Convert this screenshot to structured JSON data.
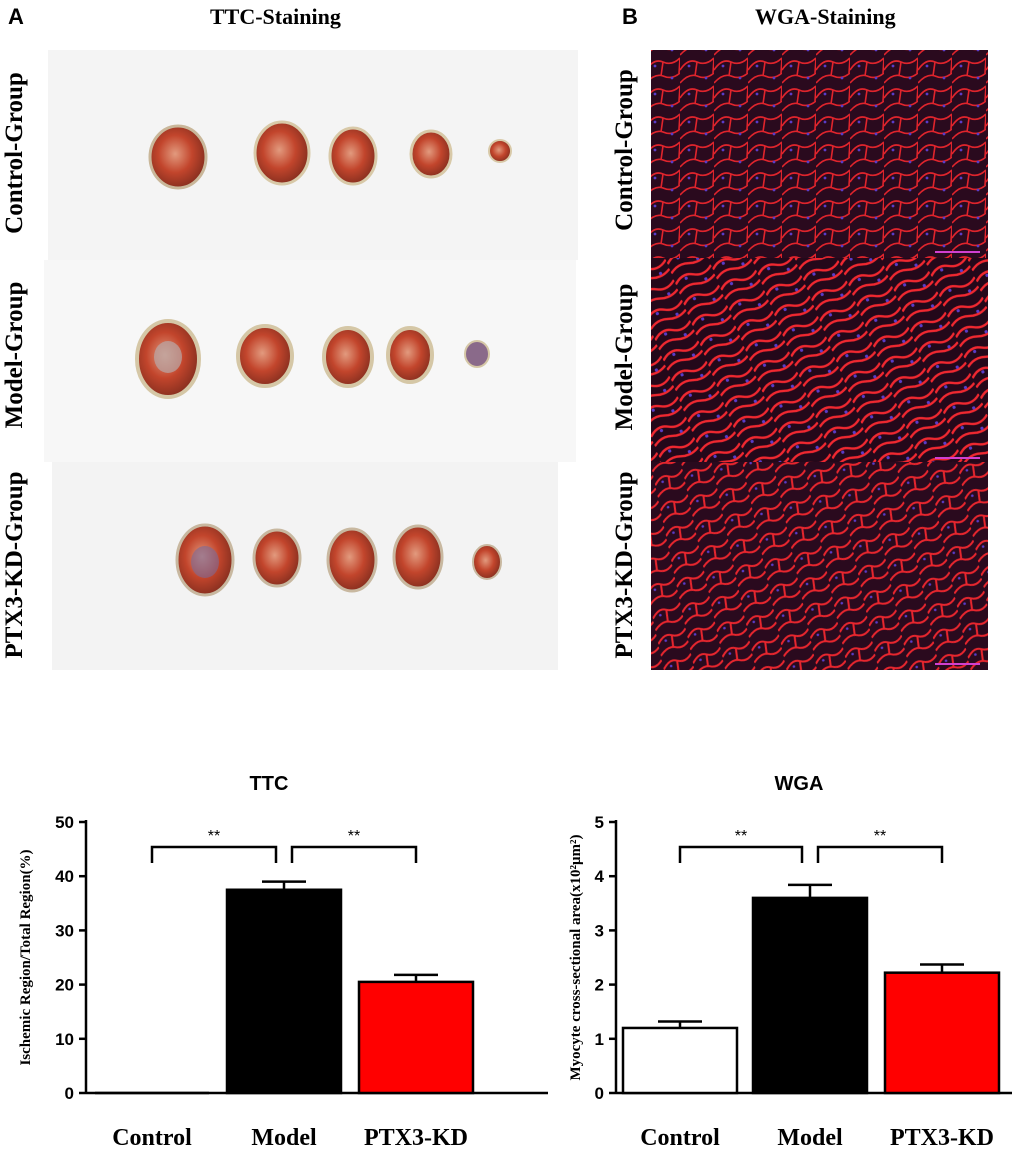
{
  "panel_a": {
    "letter": "A",
    "title": "TTC-Staining",
    "rows": [
      "Control-Group",
      "Model-Group",
      "PTX3-KD-Group"
    ]
  },
  "panel_b": {
    "letter": "B",
    "title": "WGA-Staining",
    "rows": [
      "Control-Group",
      "Model-Group",
      "PTX3-KD-Group"
    ]
  },
  "colors": {
    "model_bar": "#000000",
    "ptx3_bar": "#ff0000",
    "control_bar": "#ffffff",
    "tissue_red": "#c2452c",
    "wga_red": "#e0242c",
    "wga_bg": "#2a0a1e"
  },
  "chart_data": [
    {
      "type": "bar",
      "title": "TTC",
      "ylabel": "Ischemic Region/Total Region(%)",
      "xlabel": "",
      "categories": [
        "Control",
        "Model",
        "PTX3-KD"
      ],
      "values": [
        0,
        37.5,
        20.5
      ],
      "errors": [
        0,
        1.5,
        1.3
      ],
      "ylim": [
        0,
        50
      ],
      "yticks": [
        "0",
        "10",
        "20",
        "30",
        "40",
        "50"
      ],
      "significance": [
        {
          "from": 0,
          "to": 1,
          "label": "**"
        },
        {
          "from": 1,
          "to": 2,
          "label": "**"
        }
      ]
    },
    {
      "type": "bar",
      "title": "WGA",
      "ylabel": "Myocyte cross-sectional area(x10²μm²)",
      "xlabel": "",
      "categories": [
        "Control",
        "Model",
        "PTX3-KD"
      ],
      "values": [
        1.2,
        3.6,
        2.22
      ],
      "errors": [
        0.12,
        0.24,
        0.15
      ],
      "ylim": [
        0,
        5
      ],
      "yticks": [
        "0",
        "1",
        "2",
        "3",
        "4",
        "5"
      ],
      "significance": [
        {
          "from": 0,
          "to": 1,
          "label": "**"
        },
        {
          "from": 1,
          "to": 2,
          "label": "**"
        }
      ]
    }
  ]
}
